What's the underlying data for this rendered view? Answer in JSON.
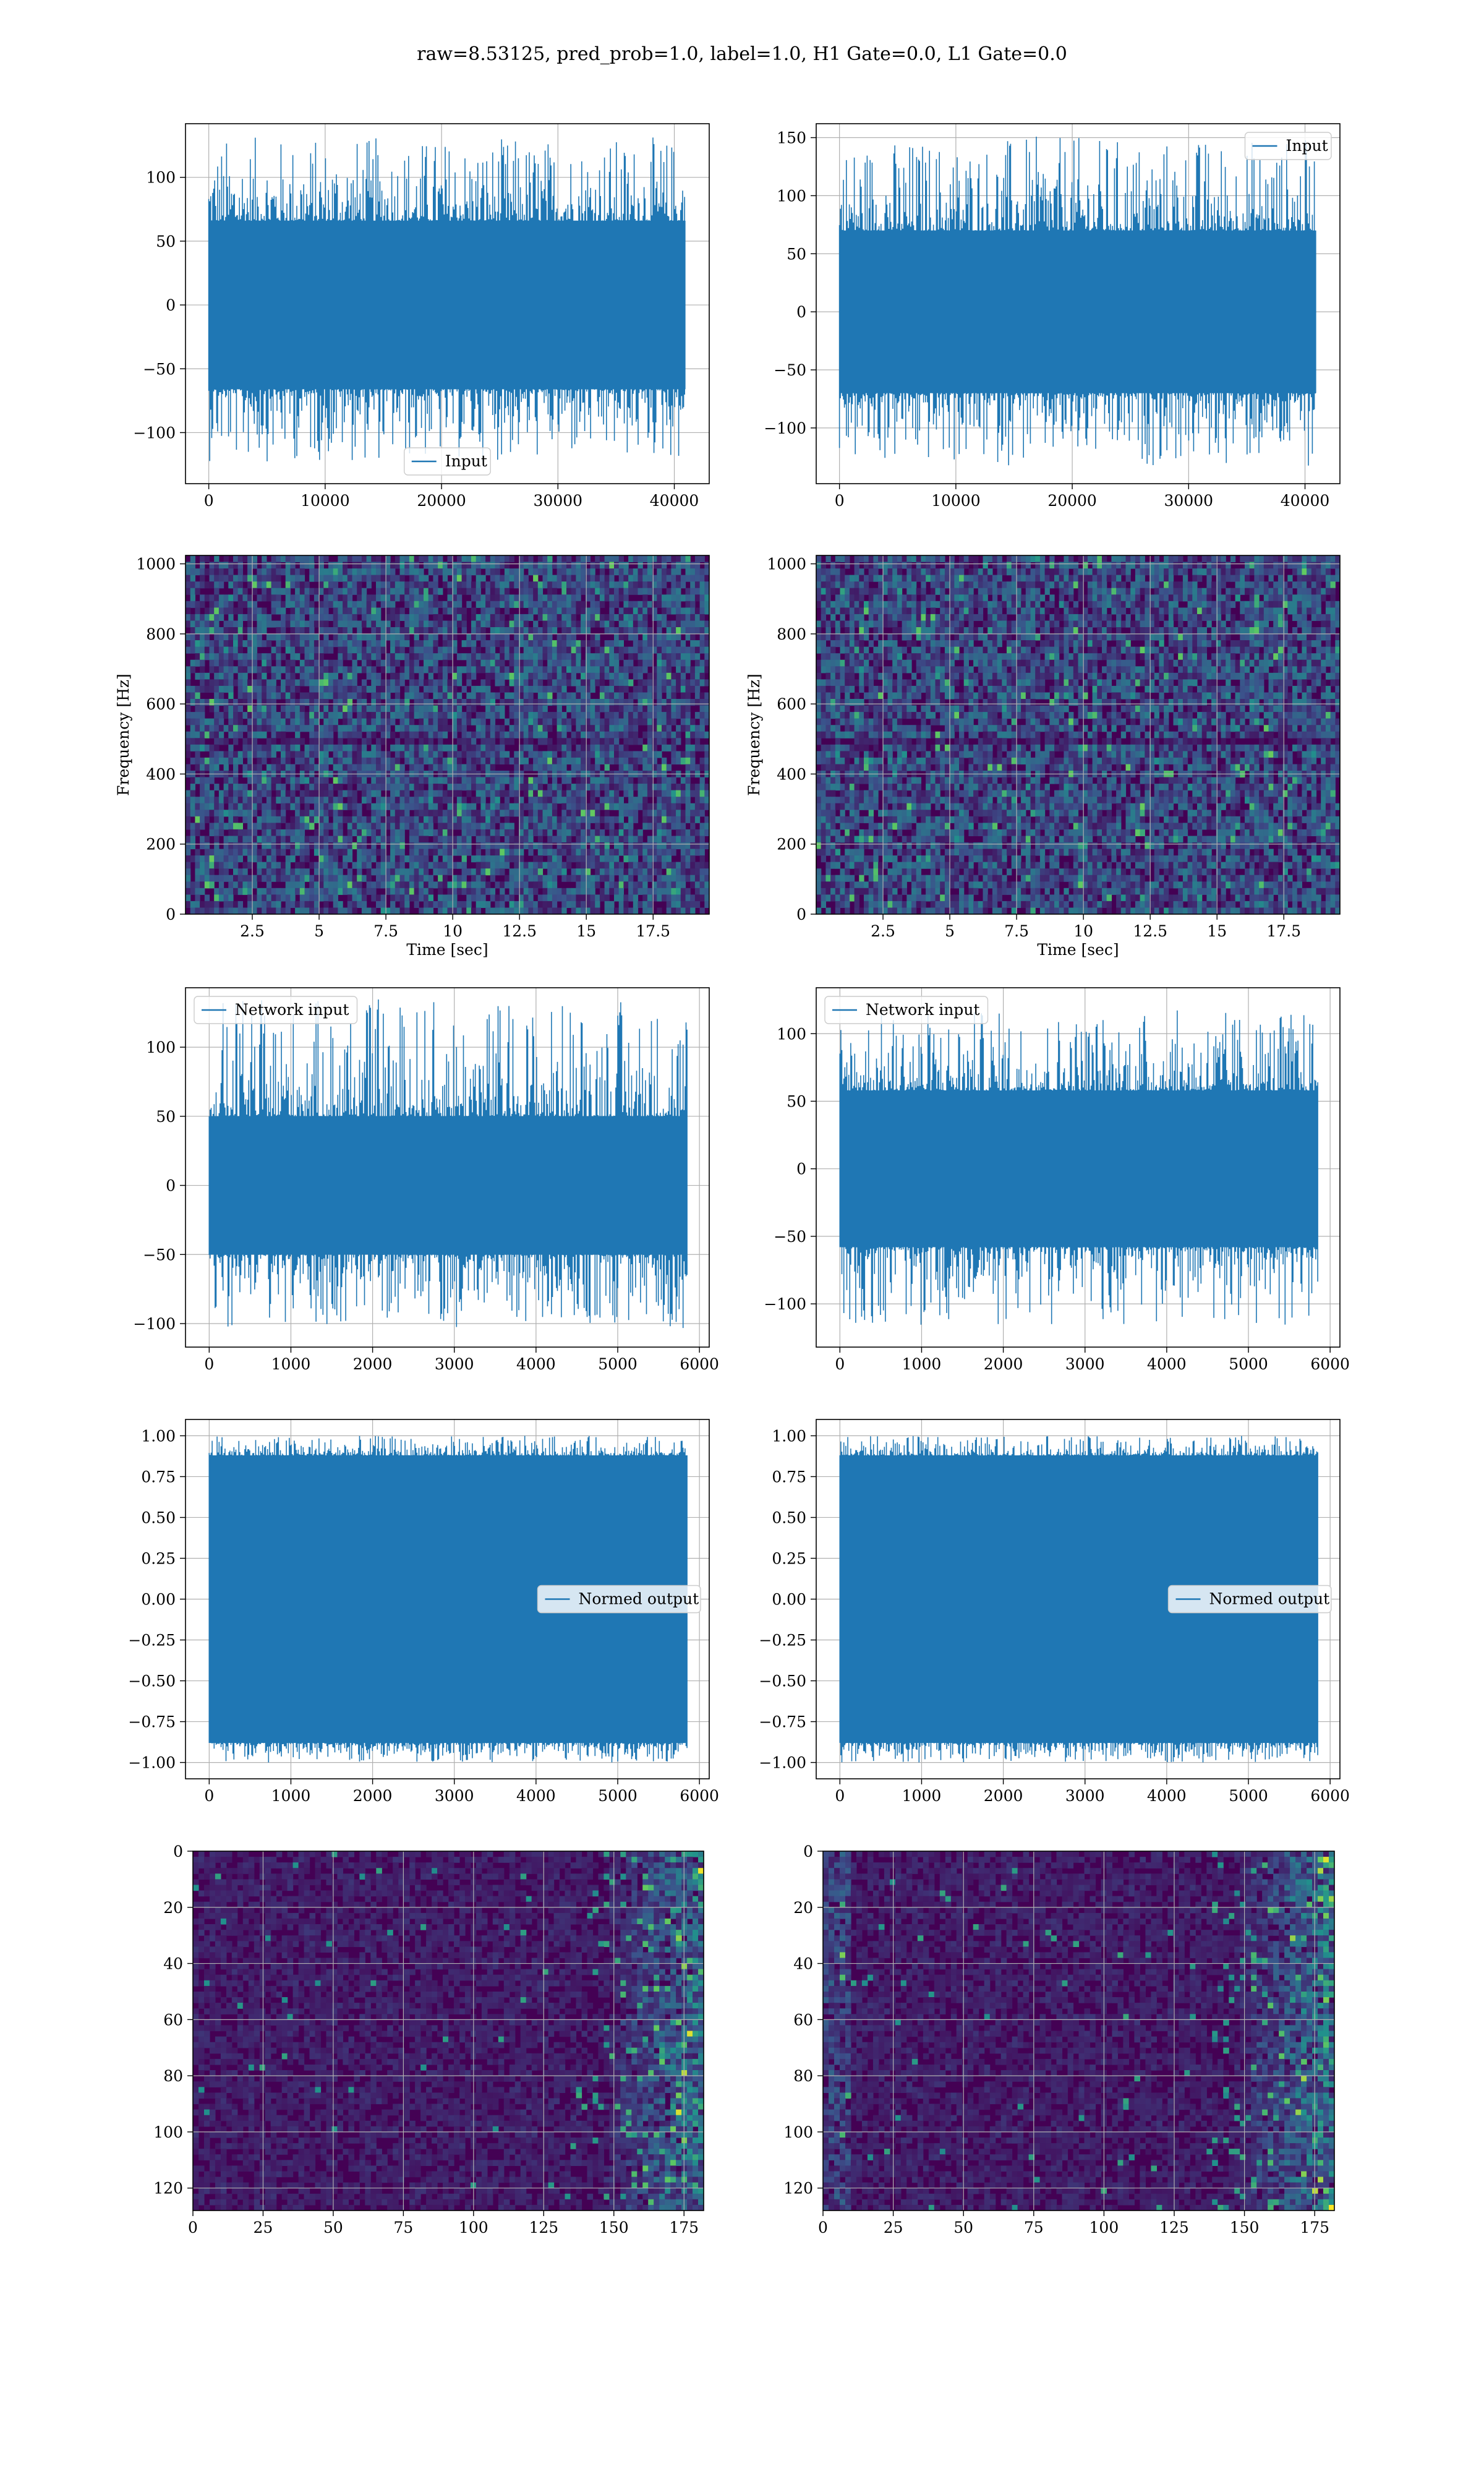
{
  "suptitle": "raw=8.53125, pred_prob=1.0, label=1.0, H1 Gate=0.0, L1 Gate=0.0",
  "colors": {
    "line": "#1f77b4",
    "grid": "#b0b0b0",
    "viridis_low": "#440154",
    "viridis_high": "#fde725"
  },
  "chart_data": [
    {
      "type": "line",
      "title": "",
      "xlabel": "",
      "ylabel": "",
      "xlim": [
        -2000,
        43000
      ],
      "ylim": [
        -140,
        142
      ],
      "xticks": [
        0,
        10000,
        20000,
        30000,
        40000
      ],
      "yticks": [
        -100,
        -50,
        0,
        50,
        100
      ],
      "series": [
        {
          "name": "Input",
          "x_range": [
            0,
            40960
          ],
          "envelope": {
            "core": 66,
            "spike_max": 132,
            "spike_min": -123
          }
        }
      ],
      "legend": "lower-center",
      "grid": true
    },
    {
      "type": "line",
      "title": "",
      "xlabel": "",
      "ylabel": "",
      "xlim": [
        -2000,
        43000
      ],
      "ylim": [
        -148,
        162
      ],
      "xticks": [
        0,
        10000,
        20000,
        30000,
        40000
      ],
      "yticks": [
        -100,
        -50,
        0,
        50,
        100,
        150
      ],
      "series": [
        {
          "name": "Input",
          "x_range": [
            0,
            40960
          ],
          "envelope": {
            "core": 70,
            "spike_max": 151,
            "spike_min": -133
          }
        }
      ],
      "legend": "upper-right",
      "grid": true
    },
    {
      "type": "heatmap",
      "title": "",
      "xlabel": "Time [sec]",
      "ylabel": "Frequency [Hz]",
      "xlim": [
        0,
        19.6
      ],
      "ylim": [
        0,
        1024
      ],
      "xticks": [
        2.5,
        5.0,
        7.5,
        10.0,
        12.5,
        15.0,
        17.5
      ],
      "yticks": [
        0,
        200,
        400,
        600,
        800,
        1000
      ],
      "colormap": "viridis",
      "grid": true
    },
    {
      "type": "heatmap",
      "title": "",
      "xlabel": "Time [sec]",
      "ylabel": "Frequency [Hz]",
      "xlim": [
        0,
        19.6
      ],
      "ylim": [
        0,
        1024
      ],
      "xticks": [
        2.5,
        5.0,
        7.5,
        10.0,
        12.5,
        15.0,
        17.5
      ],
      "yticks": [
        0,
        200,
        400,
        600,
        800,
        1000
      ],
      "colormap": "viridis",
      "grid": true
    },
    {
      "type": "line",
      "title": "",
      "xlabel": "",
      "ylabel": "",
      "xlim": [
        -290,
        6120
      ],
      "ylim": [
        -117,
        143
      ],
      "xticks": [
        0,
        1000,
        2000,
        3000,
        4000,
        5000,
        6000
      ],
      "yticks": [
        -100,
        -50,
        0,
        50,
        100
      ],
      "series": [
        {
          "name": "Network input",
          "x_range": [
            0,
            5850
          ],
          "envelope": {
            "core": 50,
            "spike_max": 135,
            "spike_min": -104
          }
        }
      ],
      "legend": "upper-left",
      "grid": true
    },
    {
      "type": "line",
      "title": "",
      "xlabel": "",
      "ylabel": "",
      "xlim": [
        -290,
        6120
      ],
      "ylim": [
        -132,
        134
      ],
      "xticks": [
        0,
        1000,
        2000,
        3000,
        4000,
        5000,
        6000
      ],
      "yticks": [
        -100,
        -50,
        0,
        50,
        100
      ],
      "series": [
        {
          "name": "Network input",
          "x_range": [
            0,
            5850
          ],
          "envelope": {
            "core": 58,
            "spike_max": 118,
            "spike_min": -117
          }
        }
      ],
      "legend": "upper-left",
      "grid": true
    },
    {
      "type": "line",
      "title": "",
      "xlabel": "",
      "ylabel": "",
      "xlim": [
        -290,
        6120
      ],
      "ylim": [
        -1.1,
        1.1
      ],
      "xticks": [
        0,
        1000,
        2000,
        3000,
        4000,
        5000,
        6000
      ],
      "yticks": [
        -1.0,
        -0.75,
        -0.5,
        -0.25,
        0.0,
        0.25,
        0.5,
        0.75,
        1.0
      ],
      "ytick_labels": [
        "−1.00",
        "−0.75",
        "−0.50",
        "−0.25",
        "0.00",
        "0.25",
        "0.50",
        "0.75",
        "1.00"
      ],
      "series": [
        {
          "name": "Normed output",
          "x_range": [
            0,
            5850
          ],
          "envelope": {
            "core": 0.88,
            "spike_max": 1.0,
            "spike_min": -1.0
          }
        }
      ],
      "legend": "center-right",
      "grid": true
    },
    {
      "type": "line",
      "title": "",
      "xlabel": "",
      "ylabel": "",
      "xlim": [
        -290,
        6120
      ],
      "ylim": [
        -1.1,
        1.1
      ],
      "xticks": [
        0,
        1000,
        2000,
        3000,
        4000,
        5000,
        6000
      ],
      "yticks": [
        -1.0,
        -0.75,
        -0.5,
        -0.25,
        0.0,
        0.25,
        0.5,
        0.75,
        1.0
      ],
      "ytick_labels": [
        "−1.00",
        "−0.75",
        "−0.50",
        "−0.25",
        "0.00",
        "0.25",
        "0.50",
        "0.75",
        "1.00"
      ],
      "series": [
        {
          "name": "Normed output",
          "x_range": [
            0,
            5850
          ],
          "envelope": {
            "core": 0.88,
            "spike_max": 1.0,
            "spike_min": -1.0
          }
        }
      ],
      "legend": "center-right",
      "grid": true
    },
    {
      "type": "heatmap",
      "title": "",
      "xlabel": "",
      "ylabel": "",
      "xlim": [
        0,
        182
      ],
      "ylim": [
        128,
        0
      ],
      "xticks": [
        0,
        25,
        50,
        75,
        100,
        125,
        150,
        175
      ],
      "yticks": [
        0,
        20,
        40,
        60,
        80,
        100,
        120
      ],
      "colormap": "viridis",
      "grid": true
    },
    {
      "type": "heatmap",
      "title": "",
      "xlabel": "",
      "ylabel": "",
      "xlim": [
        0,
        182
      ],
      "ylim": [
        128,
        0
      ],
      "xticks": [
        0,
        25,
        50,
        75,
        100,
        125,
        150,
        175
      ],
      "yticks": [
        0,
        20,
        40,
        60,
        80,
        100,
        120
      ],
      "colormap": "viridis",
      "grid": true
    }
  ]
}
